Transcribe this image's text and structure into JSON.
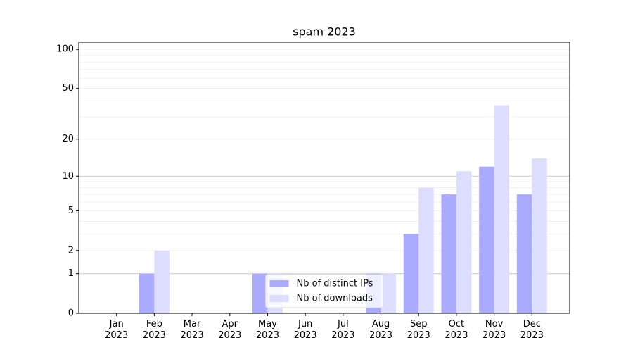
{
  "chart_data": {
    "type": "bar",
    "title": "spam 2023",
    "categories": [
      "Jan 2023",
      "Feb 2023",
      "Mar 2023",
      "Apr 2023",
      "May 2023",
      "Jun 2023",
      "Jul 2023",
      "Aug 2023",
      "Sep 2023",
      "Oct 2023",
      "Nov 2023",
      "Dec 2023"
    ],
    "series": [
      {
        "name": "Nb of distinct IPs",
        "color": "#aaaaff",
        "values": [
          0,
          1,
          0,
          0,
          1,
          0,
          0,
          1,
          3,
          7,
          12,
          7
        ]
      },
      {
        "name": "Nb of downloads",
        "color": "#ddddff",
        "values": [
          0,
          2,
          0,
          0,
          1,
          0,
          0,
          1,
          8,
          11,
          37,
          14
        ]
      }
    ],
    "yscale": "log1p",
    "ylim": [
      0,
      113.5
    ],
    "yticks": [
      0,
      1,
      2,
      5,
      10,
      20,
      50,
      100
    ],
    "major_gridlines": [
      1,
      10
    ],
    "minor_gridlines": [
      3,
      4,
      6,
      7,
      8,
      9,
      30,
      40,
      60,
      70,
      80,
      90
    ],
    "grid": true,
    "legend": "lower center"
  }
}
